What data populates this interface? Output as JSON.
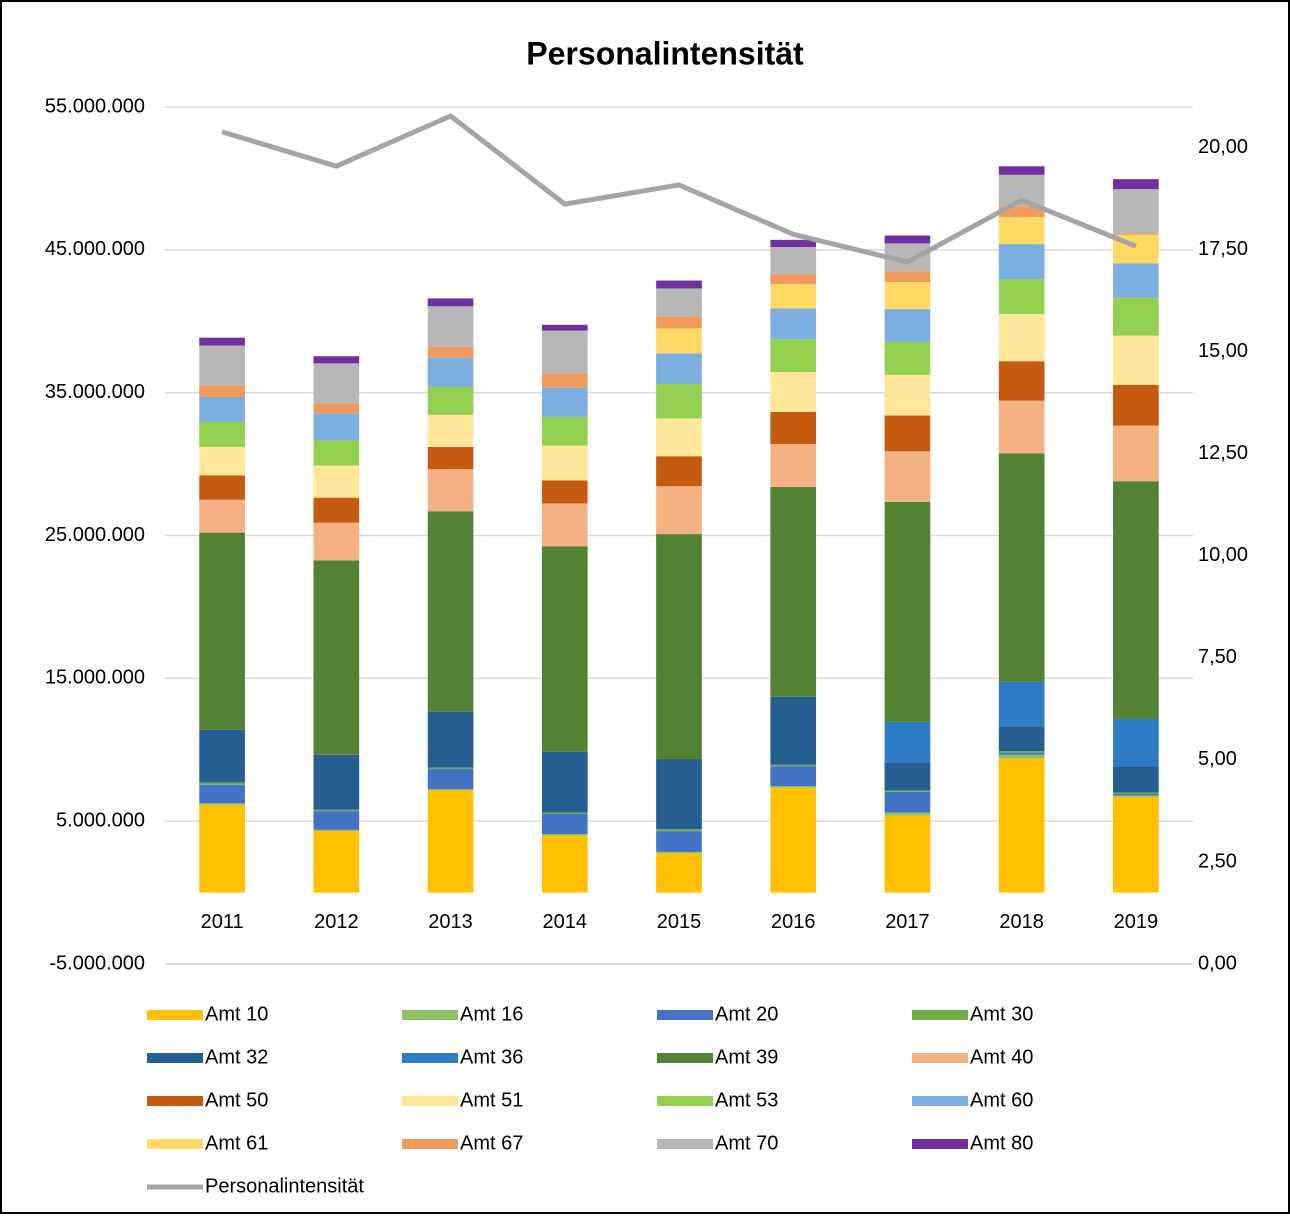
{
  "chart_data": {
    "type": "bar",
    "stacked": true,
    "title": "Personalintensität",
    "categories": [
      "2011",
      "2012",
      "2013",
      "2014",
      "2015",
      "2016",
      "2017",
      "2018",
      "2019"
    ],
    "ylim": [
      -5000000,
      55000000
    ],
    "yticks": [
      {
        "value": -5000000,
        "label": "-5.000.000"
      },
      {
        "value": 5000000,
        "label": "5.000.000"
      },
      {
        "value": 15000000,
        "label": "15.000.000"
      },
      {
        "value": 25000000,
        "label": "25.000.000"
      },
      {
        "value": 35000000,
        "label": "35.000.000"
      },
      {
        "value": 45000000,
        "label": "45.000.000"
      },
      {
        "value": 55000000,
        "label": "55.000.000"
      }
    ],
    "y2lim": [
      0,
      21
    ],
    "y2ticks": [
      {
        "value": 0,
        "label": "0,00"
      },
      {
        "value": 2.5,
        "label": "2,50"
      },
      {
        "value": 5,
        "label": "5,00"
      },
      {
        "value": 7.5,
        "label": "7,50"
      },
      {
        "value": 10,
        "label": "10,00"
      },
      {
        "value": 12.5,
        "label": "12,50"
      },
      {
        "value": 15,
        "label": "15,00"
      },
      {
        "value": 17.5,
        "label": "17,50"
      },
      {
        "value": 20,
        "label": "20,00"
      }
    ],
    "grid": true,
    "series": [
      {
        "name": "Amt 10",
        "color": "#ffc000",
        "values": [
          6150000,
          4300000,
          7150000,
          4000000,
          2750000,
          7350000,
          5400000,
          9400000,
          6700000
        ]
      },
      {
        "name": "Amt 16",
        "color": "#8cc168",
        "values": [
          100000,
          100000,
          100000,
          100000,
          100000,
          100000,
          200000,
          250000,
          100000
        ]
      },
      {
        "name": "Amt 20",
        "color": "#4472c4",
        "values": [
          1300000,
          1300000,
          1400000,
          1400000,
          1450000,
          1400000,
          1450000,
          150000,
          100000
        ]
      },
      {
        "name": "Amt 30",
        "color": "#70ad47",
        "values": [
          150000,
          100000,
          100000,
          100000,
          150000,
          100000,
          100000,
          100000,
          100000
        ]
      },
      {
        "name": "Amt 32",
        "color": "#255e91",
        "values": [
          3700000,
          3850000,
          3900000,
          4250000,
          4900000,
          4750000,
          1950000,
          1750000,
          1850000
        ]
      },
      {
        "name": "Amt 36",
        "color": "#2e7bc6",
        "values": [
          0,
          0,
          0,
          0,
          0,
          0,
          2850000,
          3100000,
          3300000
        ]
      },
      {
        "name": "Amt 39",
        "color": "#548235",
        "values": [
          13800000,
          13600000,
          14050000,
          14400000,
          15750000,
          14700000,
          15400000,
          16000000,
          16650000
        ]
      },
      {
        "name": "Amt 40",
        "color": "#f4b183",
        "values": [
          2300000,
          2650000,
          2950000,
          3000000,
          3350000,
          3000000,
          3550000,
          3700000,
          3900000
        ]
      },
      {
        "name": "Amt 50",
        "color": "#c55a11",
        "values": [
          1700000,
          1750000,
          1550000,
          1600000,
          2100000,
          2250000,
          2500000,
          2750000,
          2850000
        ]
      },
      {
        "name": "Amt 51",
        "color": "#ffe699",
        "values": [
          2000000,
          2250000,
          2250000,
          2450000,
          2650000,
          2800000,
          2850000,
          3300000,
          3450000
        ]
      },
      {
        "name": "Amt 53",
        "color": "#92d050",
        "values": [
          1750000,
          1750000,
          1950000,
          2000000,
          2400000,
          2300000,
          2300000,
          2450000,
          2650000
        ]
      },
      {
        "name": "Amt 60",
        "color": "#7caee0",
        "values": [
          1750000,
          1900000,
          2050000,
          2050000,
          2150000,
          2150000,
          2300000,
          2450000,
          2400000
        ]
      },
      {
        "name": "Amt 61",
        "color": "#ffd966",
        "values": [
          0,
          0,
          0,
          0,
          1750000,
          1700000,
          1900000,
          1900000,
          2000000
        ]
      },
      {
        "name": "Amt 67",
        "color": "#f09b5b",
        "values": [
          800000,
          700000,
          750000,
          1000000,
          850000,
          700000,
          750000,
          750000,
          100000
        ]
      },
      {
        "name": "Amt 70",
        "color": "#b7b7b7",
        "values": [
          2800000,
          2800000,
          2850000,
          3000000,
          1950000,
          1900000,
          1950000,
          2200000,
          3100000
        ]
      },
      {
        "name": "Amt 80",
        "color": "#7030a0",
        "values": [
          550000,
          500000,
          550000,
          400000,
          550000,
          500000,
          550000,
          600000,
          700000
        ]
      },
      {
        "name": "Personalintensität",
        "color": "#a5a5a5",
        "type": "line",
        "axis": "y2",
        "values": [
          20.39,
          19.55,
          20.78,
          18.62,
          19.09,
          17.88,
          17.2,
          18.72,
          17.59
        ]
      }
    ]
  }
}
